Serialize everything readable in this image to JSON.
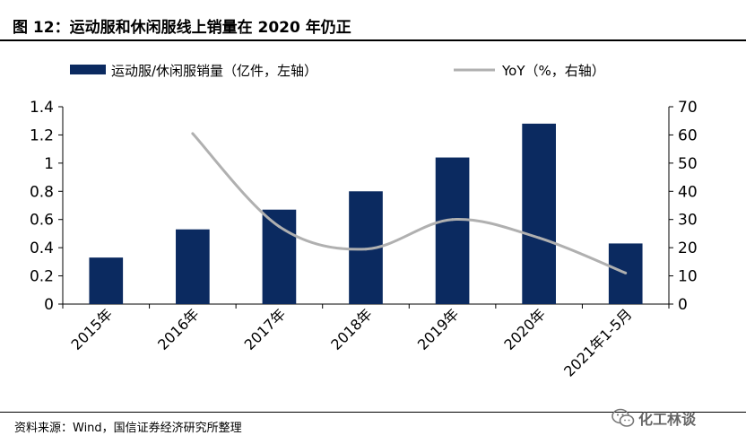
{
  "header": {
    "title": "图 12：运动服和休闲服线上销量在 2020 年仍正"
  },
  "source": "资料来源：Wind，国信证券经济研究所整理",
  "watermark": "化工林谈",
  "colors": {
    "bar": "#0b2a60",
    "line": "#b0b0b0",
    "axis": "#000000"
  },
  "chart_data": {
    "type": "bar",
    "categories": [
      "2015年",
      "2016年",
      "2017年",
      "2018年",
      "2019年",
      "2020年",
      "2021年1-5月"
    ],
    "series": [
      {
        "name": "运动服/休闲服销量（亿件，左轴）",
        "type": "bar",
        "axis": "left",
        "values": [
          0.33,
          0.53,
          0.67,
          0.8,
          1.04,
          1.28,
          0.43
        ]
      },
      {
        "name": "YoY（%，右轴）",
        "type": "line",
        "axis": "right",
        "smooth": true,
        "values": [
          null,
          60.5,
          27.5,
          19.5,
          30.0,
          23.5,
          11.0
        ]
      }
    ],
    "y_left": {
      "ylim": [
        0,
        1.4
      ],
      "ticks": [
        "0",
        "0.2",
        "0.4",
        "0.6",
        "0.8",
        "1",
        "1.2",
        "1.4"
      ]
    },
    "y_right": {
      "ylim": [
        0,
        70
      ],
      "ticks": [
        "0",
        "10",
        "20",
        "30",
        "40",
        "50",
        "60",
        "70"
      ]
    },
    "legend": {
      "placement": "top"
    },
    "grid": false
  }
}
